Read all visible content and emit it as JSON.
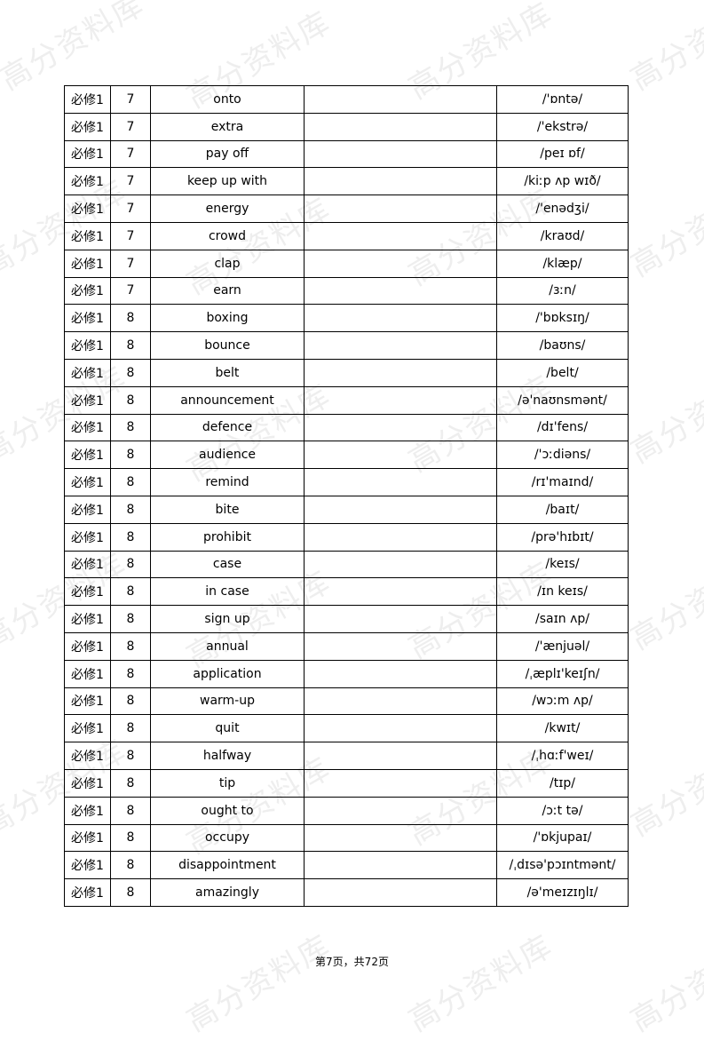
{
  "watermark": "高分资料库",
  "rows": [
    [
      "必修1",
      "7",
      "onto",
      "",
      "/'ɒntə/"
    ],
    [
      "必修1",
      "7",
      "extra",
      "",
      "/'ekstrə/"
    ],
    [
      "必修1",
      "7",
      "pay off",
      "",
      "/peɪ ɒf/"
    ],
    [
      "必修1",
      "7",
      "keep up with",
      "",
      "/kiːp ʌp wɪð/"
    ],
    [
      "必修1",
      "7",
      "energy",
      "",
      "/'enədʒi/"
    ],
    [
      "必修1",
      "7",
      "crowd",
      "",
      "/kraʊd/"
    ],
    [
      "必修1",
      "7",
      "clap",
      "",
      "/klæp/"
    ],
    [
      "必修1",
      "7",
      "earn",
      "",
      "/ɜːn/"
    ],
    [
      "必修1",
      "8",
      "boxing",
      "",
      "/'bɒksɪŋ/"
    ],
    [
      "必修1",
      "8",
      "bounce",
      "",
      "/baʊns/"
    ],
    [
      "必修1",
      "8",
      "belt",
      "",
      "/belt/"
    ],
    [
      "必修1",
      "8",
      "announcement",
      "",
      "/ə'naʊnsmənt/"
    ],
    [
      "必修1",
      "8",
      "defence",
      "",
      "/dɪ'fens/"
    ],
    [
      "必修1",
      "8",
      "audience",
      "",
      "/'ɔːdiəns/"
    ],
    [
      "必修1",
      "8",
      "remind",
      "",
      "/rɪ'maɪnd/"
    ],
    [
      "必修1",
      "8",
      "bite",
      "",
      "/baɪt/"
    ],
    [
      "必修1",
      "8",
      "prohibit",
      "",
      "/prə'hɪbɪt/"
    ],
    [
      "必修1",
      "8",
      "case",
      "",
      "/keɪs/"
    ],
    [
      "必修1",
      "8",
      "in case",
      "",
      "/ɪn keɪs/"
    ],
    [
      "必修1",
      "8",
      "sign up",
      "",
      "/saɪn ʌp/"
    ],
    [
      "必修1",
      "8",
      "annual",
      "",
      "/'ænjuəl/"
    ],
    [
      "必修1",
      "8",
      "application",
      "",
      "/ˌæplɪ'keɪʃn/"
    ],
    [
      "必修1",
      "8",
      "warm-up",
      "",
      "/wɔːm ʌp/"
    ],
    [
      "必修1",
      "8",
      "quit",
      "",
      "/kwɪt/"
    ],
    [
      "必修1",
      "8",
      "halfway",
      "",
      "/ˌhɑːf'weɪ/"
    ],
    [
      "必修1",
      "8",
      "tip",
      "",
      "/tɪp/"
    ],
    [
      "必修1",
      "8",
      "ought to",
      "",
      "/ɔːt tə/"
    ],
    [
      "必修1",
      "8",
      "occupy",
      "",
      "/'ɒkjupaɪ/"
    ],
    [
      "必修1",
      "8",
      "disappointment",
      "",
      "/ˌdɪsə'pɔɪntmənt/"
    ],
    [
      "必修1",
      "8",
      "amazingly",
      "",
      "/ə'meɪzɪŋlɪ/"
    ]
  ],
  "footer": "第7页，共72页"
}
